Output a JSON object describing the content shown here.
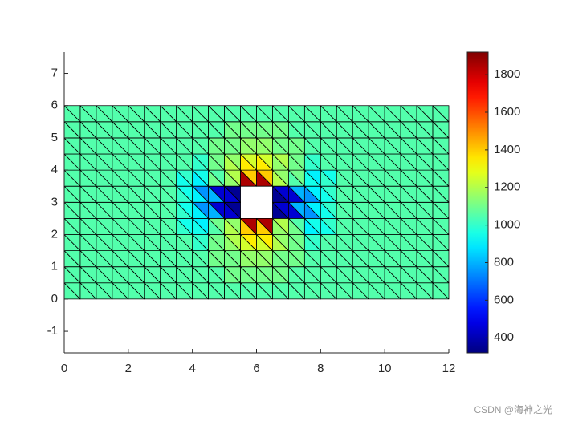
{
  "chart_data": {
    "type": "trimesh",
    "colormap": "jet",
    "x_nodes": [
      0,
      0.5,
      1,
      1.5,
      2,
      2.5,
      3,
      3.5,
      4,
      4.5,
      5,
      5.5,
      6,
      6.5,
      7,
      7.5,
      8,
      8.5,
      9,
      9.5,
      10,
      10.5,
      11,
      11.5,
      12
    ],
    "y_nodes": [
      0,
      0.5,
      1,
      1.5,
      2,
      2.5,
      3,
      3.5,
      4,
      4.5,
      5,
      5.5,
      6
    ],
    "values": [
      [
        1050,
        1050,
        1050,
        1050,
        1050,
        1050,
        1050,
        1050,
        1050,
        1050,
        1050,
        1050,
        1050,
        1050,
        1050,
        1050,
        1050,
        1050,
        1050,
        1050,
        1050,
        1050,
        1050,
        1050,
        1050,
        1050,
        1050,
        1050,
        1050,
        1050,
        1050,
        1050,
        1050,
        1050,
        1050,
        1050,
        1050,
        1050,
        1050,
        1050,
        1050,
        1050,
        1050,
        1050,
        1050,
        1050,
        1050,
        1050
      ],
      [
        1050,
        1050,
        1050,
        1050,
        1050,
        1050,
        1050,
        1050,
        1050,
        1050,
        1050,
        1050,
        1050,
        1050,
        1050,
        1050,
        1050,
        1050,
        1050,
        1050,
        1100,
        1100,
        1100,
        1100,
        1100,
        1100,
        1100,
        1100,
        1050,
        1050,
        1050,
        1050,
        1050,
        1050,
        1050,
        1050,
        1050,
        1050,
        1050,
        1050,
        1050,
        1050,
        1050,
        1050,
        1050,
        1050,
        1050,
        1050
      ],
      [
        1050,
        1050,
        1050,
        1050,
        1050,
        1050,
        1050,
        1050,
        1050,
        1050,
        1050,
        1050,
        1050,
        1050,
        1050,
        1050,
        1050,
        1050,
        1100,
        1100,
        1100,
        1100,
        1150,
        1150,
        1150,
        1150,
        1100,
        1100,
        1100,
        1100,
        1050,
        1050,
        1050,
        1050,
        1050,
        1050,
        1050,
        1050,
        1050,
        1050,
        1050,
        1050,
        1050,
        1050,
        1050,
        1050,
        1050,
        1050
      ],
      [
        1050,
        1050,
        1050,
        1050,
        1050,
        1050,
        1050,
        1050,
        1050,
        1050,
        1050,
        1050,
        1050,
        1050,
        1050,
        1050,
        1000,
        1000,
        1100,
        1100,
        1150,
        1200,
        1250,
        1350,
        1250,
        1350,
        1200,
        1150,
        1100,
        1100,
        1000,
        1000,
        1050,
        1050,
        1050,
        1050,
        1050,
        1050,
        1050,
        1050,
        1050,
        1050,
        1050,
        1050,
        1050,
        1050,
        1050,
        1050
      ],
      [
        1050,
        1050,
        1050,
        1050,
        1050,
        1050,
        1050,
        1050,
        1050,
        1050,
        1050,
        1050,
        1050,
        1050,
        1000,
        950,
        950,
        900,
        1050,
        1100,
        1200,
        1150,
        1400,
        1850,
        1400,
        1850,
        1150,
        1200,
        1100,
        1050,
        900,
        950,
        950,
        1000,
        1050,
        1050,
        1050,
        1050,
        1050,
        1050,
        1050,
        1050,
        1050,
        1050,
        1050,
        1050,
        1050,
        1050
      ],
      [
        1050,
        1050,
        1050,
        1050,
        1050,
        1050,
        1050,
        1050,
        1050,
        1050,
        1050,
        1050,
        1050,
        1050,
        1000,
        950,
        900,
        750,
        800,
        450,
        450,
        350,
        null,
        null,
        null,
        null,
        350,
        450,
        450,
        800,
        750,
        900,
        950,
        1000,
        1050,
        1050,
        1050,
        1050,
        1050,
        1050,
        1050,
        1050,
        1050,
        1050,
        1050,
        1050,
        1050,
        1050
      ],
      [
        1050,
        1050,
        1050,
        1050,
        1050,
        1050,
        1050,
        1050,
        1050,
        1050,
        1050,
        1050,
        1050,
        1050,
        1000,
        950,
        900,
        750,
        800,
        450,
        450,
        350,
        null,
        null,
        null,
        null,
        350,
        450,
        450,
        800,
        750,
        900,
        950,
        1000,
        1050,
        1050,
        1050,
        1050,
        1050,
        1050,
        1050,
        1050,
        1050,
        1050,
        1050,
        1050,
        1050,
        1050
      ],
      [
        1050,
        1050,
        1050,
        1050,
        1050,
        1050,
        1050,
        1050,
        1050,
        1050,
        1050,
        1050,
        1050,
        1050,
        950,
        1000,
        900,
        950,
        1100,
        1050,
        1150,
        1200,
        1850,
        1400,
        1850,
        1400,
        1200,
        1150,
        1050,
        1100,
        950,
        900,
        1000,
        950,
        1050,
        1050,
        1050,
        1050,
        1050,
        1050,
        1050,
        1050,
        1050,
        1050,
        1050,
        1050,
        1050,
        1050
      ],
      [
        1050,
        1050,
        1050,
        1050,
        1050,
        1050,
        1050,
        1050,
        1050,
        1050,
        1050,
        1050,
        1050,
        1050,
        1050,
        1050,
        1000,
        1000,
        1100,
        1100,
        1200,
        1150,
        1350,
        1250,
        1350,
        1250,
        1150,
        1200,
        1100,
        1100,
        1000,
        1000,
        1050,
        1050,
        1050,
        1050,
        1050,
        1050,
        1050,
        1050,
        1050,
        1050,
        1050,
        1050,
        1050,
        1050,
        1050,
        1050
      ],
      [
        1050,
        1050,
        1050,
        1050,
        1050,
        1050,
        1050,
        1050,
        1050,
        1050,
        1050,
        1050,
        1050,
        1050,
        1050,
        1050,
        1050,
        1050,
        1100,
        1100,
        1100,
        1100,
        1150,
        1150,
        1150,
        1150,
        1100,
        1100,
        1100,
        1100,
        1050,
        1050,
        1050,
        1050,
        1050,
        1050,
        1050,
        1050,
        1050,
        1050,
        1050,
        1050,
        1050,
        1050,
        1050,
        1050,
        1050,
        1050
      ],
      [
        1050,
        1050,
        1050,
        1050,
        1050,
        1050,
        1050,
        1050,
        1050,
        1050,
        1050,
        1050,
        1050,
        1050,
        1050,
        1050,
        1050,
        1050,
        1050,
        1050,
        1100,
        1100,
        1100,
        1100,
        1100,
        1100,
        1100,
        1100,
        1050,
        1050,
        1050,
        1050,
        1050,
        1050,
        1050,
        1050,
        1050,
        1050,
        1050,
        1050,
        1050,
        1050,
        1050,
        1050,
        1050,
        1050,
        1050,
        1050
      ],
      [
        1050,
        1050,
        1050,
        1050,
        1050,
        1050,
        1050,
        1050,
        1050,
        1050,
        1050,
        1050,
        1050,
        1050,
        1050,
        1050,
        1050,
        1050,
        1050,
        1050,
        1050,
        1050,
        1050,
        1050,
        1050,
        1050,
        1050,
        1050,
        1050,
        1050,
        1050,
        1050,
        1050,
        1050,
        1050,
        1050,
        1050,
        1050,
        1050,
        1050,
        1050,
        1050,
        1050,
        1050,
        1050,
        1050,
        1050,
        1050
      ]
    ],
    "xlim": [
      0,
      12
    ],
    "xticks": [
      0,
      2,
      4,
      6,
      8,
      10,
      12
    ],
    "ylim": [
      -1.67,
      7.66
    ],
    "yticks": [
      -1,
      0,
      1,
      2,
      3,
      4,
      5,
      6,
      7
    ],
    "clim": [
      320,
      1920
    ],
    "cticks": [
      400,
      600,
      800,
      1000,
      1200,
      1400,
      1600,
      1800
    ],
    "watermark": "CSDN @海神之光"
  }
}
